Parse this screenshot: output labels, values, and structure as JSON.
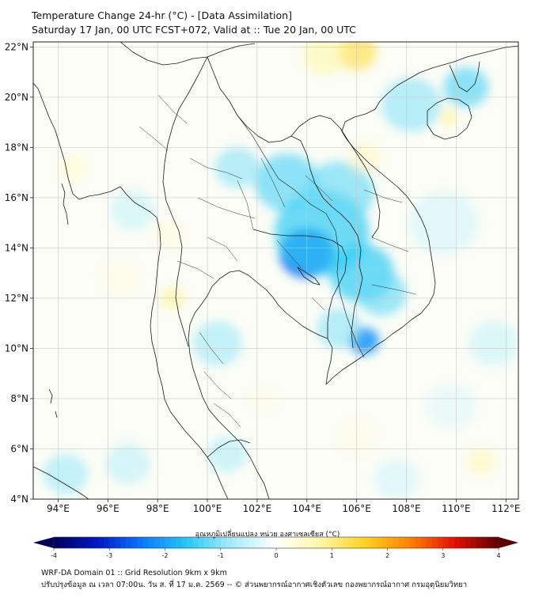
{
  "title": {
    "line1": "Temperature Change 24-hr (°C) - [Data Assimilation]",
    "line2": "Saturday 17 Jan, 00 UTC FCST+072, Valid at :: Tue 20 Jan, 00 UTC"
  },
  "map": {
    "lon_range": [
      93,
      112.5
    ],
    "lat_range": [
      4,
      22.2
    ],
    "lat_ticks": [
      {
        "value": 22,
        "label": "22°N"
      },
      {
        "value": 20,
        "label": "20°N"
      },
      {
        "value": 18,
        "label": "18°N"
      },
      {
        "value": 16,
        "label": "16°N"
      },
      {
        "value": 14,
        "label": "14°N"
      },
      {
        "value": 12,
        "label": "12°N"
      },
      {
        "value": 10,
        "label": "10°N"
      },
      {
        "value": 8,
        "label": "8°N"
      },
      {
        "value": 6,
        "label": "6°N"
      },
      {
        "value": 4,
        "label": "4°N"
      }
    ],
    "lon_ticks": [
      {
        "value": 94,
        "label": "94°E"
      },
      {
        "value": 96,
        "label": "96°E"
      },
      {
        "value": 98,
        "label": "98°E"
      },
      {
        "value": 100,
        "label": "100°E"
      },
      {
        "value": 102,
        "label": "102°E"
      },
      {
        "value": 104,
        "label": "104°E"
      },
      {
        "value": 106,
        "label": "106°E"
      },
      {
        "value": 108,
        "label": "108°E"
      },
      {
        "value": 110,
        "label": "110°E"
      },
      {
        "value": 112,
        "label": "112°E"
      }
    ],
    "anomalies": [
      {
        "lon": 104.0,
        "lat": 13.8,
        "value": -2.6,
        "spread": 1.1
      },
      {
        "lon": 104.6,
        "lat": 14.6,
        "value": -1.5,
        "spread": 1.9
      },
      {
        "lon": 103.2,
        "lat": 16.6,
        "value": -1.3,
        "spread": 1.3
      },
      {
        "lon": 105.3,
        "lat": 16.2,
        "value": -1.2,
        "spread": 1.4
      },
      {
        "lon": 106.2,
        "lat": 13.0,
        "value": -1.5,
        "spread": 1.3
      },
      {
        "lon": 107.0,
        "lat": 12.2,
        "value": -1.2,
        "spread": 1.0
      },
      {
        "lon": 106.3,
        "lat": 10.3,
        "value": -2.1,
        "spread": 0.6
      },
      {
        "lon": 105.3,
        "lat": 10.8,
        "value": -1.0,
        "spread": 0.9
      },
      {
        "lon": 100.4,
        "lat": 10.2,
        "value": -0.9,
        "spread": 1.0
      },
      {
        "lon": 101.2,
        "lat": 17.2,
        "value": -1.0,
        "spread": 0.9
      },
      {
        "lon": 97.0,
        "lat": 15.5,
        "value": -0.6,
        "spread": 0.9
      },
      {
        "lon": 108.2,
        "lat": 19.7,
        "value": -1.0,
        "spread": 1.2
      },
      {
        "lon": 110.4,
        "lat": 20.4,
        "value": -1.3,
        "spread": 0.9
      },
      {
        "lon": 109.5,
        "lat": 15.0,
        "value": -0.5,
        "spread": 1.4
      },
      {
        "lon": 94.3,
        "lat": 5.0,
        "value": -0.9,
        "spread": 0.9
      },
      {
        "lon": 96.8,
        "lat": 5.4,
        "value": -0.7,
        "spread": 0.9
      },
      {
        "lon": 100.8,
        "lat": 5.8,
        "value": -0.8,
        "spread": 0.8
      },
      {
        "lon": 107.6,
        "lat": 4.8,
        "value": -0.5,
        "spread": 0.9
      },
      {
        "lon": 109.8,
        "lat": 7.7,
        "value": -0.4,
        "spread": 1.0
      },
      {
        "lon": 111.5,
        "lat": 10.2,
        "value": -0.6,
        "spread": 1.0
      },
      {
        "lon": 106.0,
        "lat": 21.8,
        "value": 1.3,
        "spread": 0.8
      },
      {
        "lon": 104.7,
        "lat": 21.7,
        "value": 0.8,
        "spread": 0.9
      },
      {
        "lon": 109.7,
        "lat": 19.2,
        "value": 0.9,
        "spread": 0.4
      },
      {
        "lon": 106.3,
        "lat": 17.6,
        "value": 0.6,
        "spread": 0.7
      },
      {
        "lon": 98.6,
        "lat": 12.0,
        "value": 0.9,
        "spread": 0.5
      },
      {
        "lon": 98.4,
        "lat": 14.5,
        "value": 0.4,
        "spread": 0.6
      },
      {
        "lon": 94.6,
        "lat": 17.2,
        "value": 0.5,
        "spread": 0.6
      },
      {
        "lon": 96.5,
        "lat": 12.8,
        "value": 0.3,
        "spread": 0.8
      },
      {
        "lon": 111.0,
        "lat": 5.5,
        "value": 0.7,
        "spread": 0.6
      },
      {
        "lon": 106.0,
        "lat": 6.5,
        "value": 0.3,
        "spread": 0.8
      },
      {
        "lon": 102.3,
        "lat": 8.0,
        "value": 0.3,
        "spread": 0.6
      }
    ]
  },
  "colorbar": {
    "label": "อุณหภูมิเปลี่ยนแปลง หน่วย องศาเซลเซียส (°C)",
    "min": -4,
    "max": 4,
    "ticks": [
      {
        "value": -4,
        "label": "-4"
      },
      {
        "value": -3,
        "label": "-3"
      },
      {
        "value": -2,
        "label": "-2"
      },
      {
        "value": -1,
        "label": "-1"
      },
      {
        "value": 0,
        "label": "0"
      },
      {
        "value": 1,
        "label": "1"
      },
      {
        "value": 2,
        "label": "2"
      },
      {
        "value": 3,
        "label": "3"
      },
      {
        "value": 4,
        "label": "4"
      }
    ],
    "stops": [
      "#00005a",
      "#0018c8",
      "#0a7aff",
      "#28c8f5",
      "#a8ecfa",
      "#ffffff",
      "#fff7a6",
      "#ffd21e",
      "#ff8200",
      "#e60f05",
      "#5f0000"
    ]
  },
  "footer": {
    "line1": "WRF-DA Domain 01 :: Grid Resolution 9km x 9km",
    "line2": "ปรับปรุงข้อมูล ณ เวลา 07:00น. วัน ส. ที่ 17 ม.ค. 2569 -- © ส่วนพยากรณ์อากาศเชิงตัวเลข กองพยากรณ์อากาศ กรมอุตุนิยมวิทยา"
  }
}
